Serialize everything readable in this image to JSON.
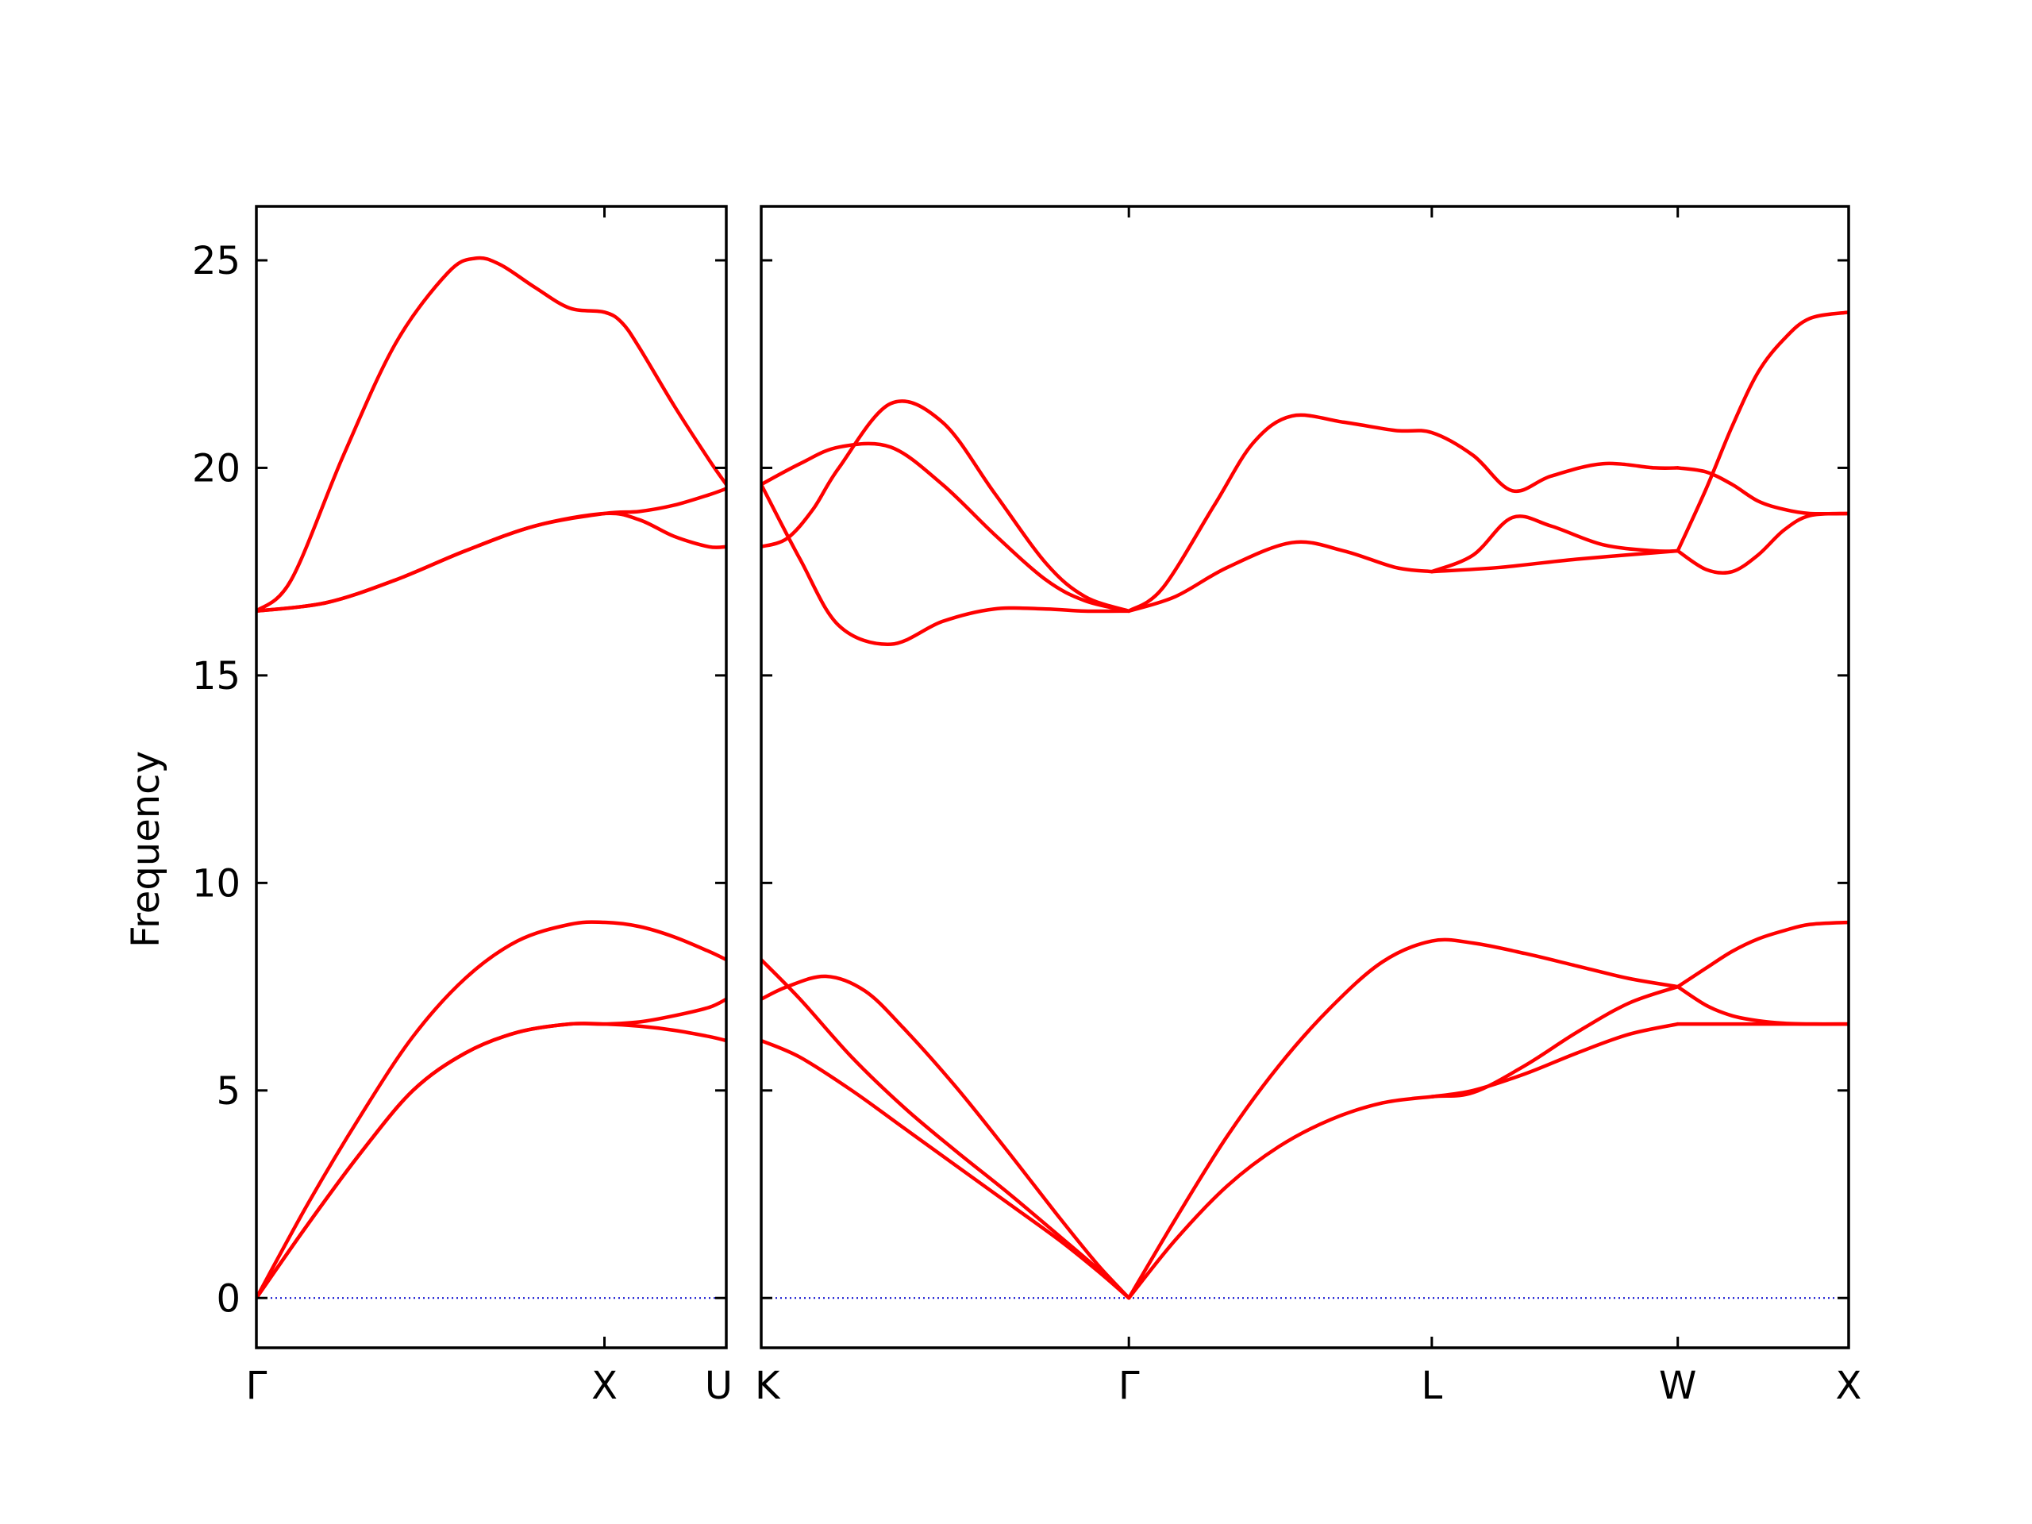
{
  "colors": {
    "band": "#ff0000",
    "zero_line": "#0000cc",
    "frame": "#000000",
    "background": "#ffffff"
  },
  "chart_data": {
    "type": "line",
    "title": "",
    "ylabel": "Frequency",
    "xlabel": "",
    "ylim": [
      -1.2,
      26.3
    ],
    "yticks": [
      0,
      5,
      10,
      15,
      20,
      25
    ],
    "grid": false,
    "legend": "none",
    "zero_line": {
      "y": 0,
      "style": "dotted"
    },
    "panels": [
      {
        "name": "panel-left",
        "xlim": [
          0,
          1.35
        ],
        "xticks": [
          {
            "x": 0,
            "label": "Γ"
          },
          {
            "x": 1.0,
            "label": "X"
          },
          {
            "x": 1.35,
            "label": "U"
          }
        ],
        "series": [
          {
            "x": [
              0,
              0.1,
              0.25,
              0.4,
              0.55,
              0.63,
              0.7,
              0.8,
              0.9,
              1.0,
              1.05,
              1.1,
              1.2,
              1.3,
              1.35
            ],
            "y": [
              16.55,
              17.3,
              20.3,
              23.0,
              24.7,
              25.05,
              24.9,
              24.35,
              23.85,
              23.75,
              23.5,
              22.9,
              21.5,
              20.2,
              19.6
            ]
          },
          {
            "x": [
              0,
              0.2,
              0.4,
              0.6,
              0.8,
              1.0,
              1.1,
              1.2,
              1.3,
              1.35
            ],
            "y": [
              16.55,
              16.75,
              17.3,
              18.0,
              18.6,
              18.9,
              18.95,
              19.1,
              19.35,
              19.5
            ]
          },
          {
            "x": [
              0,
              0.2,
              0.4,
              0.6,
              0.8,
              1.0,
              1.1,
              1.2,
              1.3,
              1.35
            ],
            "y": [
              16.55,
              16.75,
              17.3,
              18.0,
              18.6,
              18.9,
              18.75,
              18.35,
              18.1,
              18.1
            ]
          },
          {
            "x": [
              0,
              0.15,
              0.3,
              0.45,
              0.6,
              0.75,
              0.9,
              1.0,
              1.1,
              1.2,
              1.3,
              1.35
            ],
            "y": [
              0,
              2.3,
              4.4,
              6.3,
              7.7,
              8.6,
              9.0,
              9.05,
              8.95,
              8.7,
              8.35,
              8.15
            ]
          },
          {
            "x": [
              0,
              0.15,
              0.3,
              0.45,
              0.6,
              0.75,
              0.9,
              1.0,
              1.1,
              1.2,
              1.3,
              1.35
            ],
            "y": [
              0,
              1.8,
              3.5,
              5.0,
              5.9,
              6.4,
              6.6,
              6.6,
              6.65,
              6.8,
              7.0,
              7.2
            ]
          },
          {
            "x": [
              0,
              0.15,
              0.3,
              0.45,
              0.6,
              0.75,
              0.9,
              1.0,
              1.1,
              1.2,
              1.3,
              1.35
            ],
            "y": [
              0,
              1.8,
              3.5,
              5.0,
              5.9,
              6.4,
              6.6,
              6.6,
              6.55,
              6.45,
              6.3,
              6.2
            ]
          }
        ]
      },
      {
        "name": "panel-right",
        "xlim": [
          1.35,
          5.55
        ],
        "xticks": [
          {
            "x": 1.35,
            "label": "K"
          },
          {
            "x": 2.77,
            "label": "Γ"
          },
          {
            "x": 3.94,
            "label": "L"
          },
          {
            "x": 4.89,
            "label": "W"
          },
          {
            "x": 5.55,
            "label": "X"
          }
        ],
        "series": [
          {
            "x": [
              1.35,
              1.5,
              1.65,
              1.85,
              2.05,
              2.25,
              2.45,
              2.6,
              2.77
            ],
            "y": [
              19.6,
              17.8,
              16.2,
              15.75,
              16.3,
              16.6,
              16.6,
              16.55,
              16.55
            ]
          },
          {
            "x": [
              1.35,
              1.5,
              1.65,
              1.85,
              2.05,
              2.25,
              2.45,
              2.6,
              2.77
            ],
            "y": [
              19.6,
              20.1,
              20.5,
              20.5,
              19.6,
              18.4,
              17.3,
              16.8,
              16.55
            ]
          },
          {
            "x": [
              1.35,
              1.45,
              1.55,
              1.65,
              1.85,
              2.05,
              2.25,
              2.45,
              2.6,
              2.77
            ],
            "y": [
              18.1,
              18.3,
              19.0,
              20.0,
              21.55,
              21.1,
              19.4,
              17.7,
              16.9,
              16.55
            ]
          },
          {
            "x": [
              2.77,
              2.9,
              3.1,
              3.25,
              3.4,
              3.6,
              3.8,
              3.94,
              4.1,
              4.25,
              4.4,
              4.6,
              4.8,
              4.89
            ],
            "y": [
              16.55,
              17.1,
              19.1,
              20.6,
              21.25,
              21.1,
              20.9,
              20.85,
              20.3,
              19.45,
              19.8,
              20.1,
              20.0,
              20.0
            ]
          },
          {
            "x": [
              2.77,
              2.95,
              3.15,
              3.4,
              3.6,
              3.8,
              3.94
            ],
            "y": [
              16.55,
              16.9,
              17.6,
              18.2,
              18.0,
              17.6,
              17.5
            ]
          },
          {
            "x": [
              3.94,
              4.1,
              4.25,
              4.4,
              4.6,
              4.8,
              4.89
            ],
            "y": [
              17.5,
              17.9,
              18.8,
              18.6,
              18.15,
              18.0,
              18.0
            ]
          },
          {
            "x": [
              3.94,
              4.2,
              4.5,
              4.89
            ],
            "y": [
              17.5,
              17.6,
              17.8,
              18.0
            ]
          },
          {
            "x": [
              4.89,
              5.0,
              5.1,
              5.2,
              5.3,
              5.4,
              5.55
            ],
            "y": [
              18.0,
              19.5,
              21.0,
              22.3,
              23.1,
              23.6,
              23.75
            ]
          },
          {
            "x": [
              4.89,
              5.0,
              5.1,
              5.2,
              5.3,
              5.4,
              5.55
            ],
            "y": [
              20.0,
              19.9,
              19.6,
              19.2,
              19.0,
              18.9,
              18.9
            ]
          },
          {
            "x": [
              4.89,
              5.0,
              5.1,
              5.2,
              5.3,
              5.4,
              5.55
            ],
            "y": [
              18.0,
              17.55,
              17.5,
              17.9,
              18.5,
              18.85,
              18.9
            ]
          },
          {
            "x": [
              1.35,
              1.5,
              1.7,
              1.9,
              2.1,
              2.3,
              2.5,
              2.65,
              2.77
            ],
            "y": [
              8.15,
              7.2,
              5.8,
              4.6,
              3.55,
              2.55,
              1.5,
              0.7,
              0
            ]
          },
          {
            "x": [
              1.35,
              1.45,
              1.6,
              1.75,
              1.9,
              2.1,
              2.3,
              2.5,
              2.65,
              2.77
            ],
            "y": [
              7.2,
              7.5,
              7.75,
              7.4,
              6.5,
              5.1,
              3.55,
              1.95,
              0.8,
              0
            ]
          },
          {
            "x": [
              1.35,
              1.5,
              1.7,
              1.9,
              2.1,
              2.3,
              2.5,
              2.65,
              2.77
            ],
            "y": [
              6.2,
              5.8,
              5.0,
              4.1,
              3.2,
              2.3,
              1.4,
              0.65,
              0
            ]
          },
          {
            "x": [
              2.77,
              2.95,
              3.15,
              3.35,
              3.55,
              3.75,
              3.94,
              4.1,
              4.3,
              4.5,
              4.7,
              4.89
            ],
            "y": [
              0,
              1.9,
              3.9,
              5.6,
              7.0,
              8.1,
              8.6,
              8.55,
              8.3,
              8.0,
              7.7,
              7.5
            ]
          },
          {
            "x": [
              2.77,
              2.95,
              3.15,
              3.35,
              3.55,
              3.75,
              3.94,
              4.1,
              4.3,
              4.5,
              4.7,
              4.89
            ],
            "y": [
              0,
              1.4,
              2.7,
              3.65,
              4.3,
              4.7,
              4.85,
              4.95,
              5.6,
              6.4,
              7.1,
              7.5
            ]
          },
          {
            "x": [
              3.94,
              4.1,
              4.3,
              4.5,
              4.7,
              4.89
            ],
            "y": [
              4.85,
              5.0,
              5.4,
              5.9,
              6.35,
              6.6
            ]
          },
          {
            "x": [
              4.89,
              5.0,
              5.1,
              5.2,
              5.3,
              5.4,
              5.55
            ],
            "y": [
              6.6,
              6.6,
              6.6,
              6.6,
              6.6,
              6.6,
              6.6
            ]
          },
          {
            "x": [
              4.89,
              5.0,
              5.1,
              5.2,
              5.3,
              5.4,
              5.55
            ],
            "y": [
              7.5,
              7.95,
              8.35,
              8.65,
              8.85,
              9.0,
              9.05
            ]
          },
          {
            "x": [
              4.89,
              5.0,
              5.1,
              5.2,
              5.3,
              5.4,
              5.55
            ],
            "y": [
              7.5,
              7.05,
              6.8,
              6.68,
              6.62,
              6.6,
              6.6
            ]
          }
        ]
      }
    ]
  }
}
